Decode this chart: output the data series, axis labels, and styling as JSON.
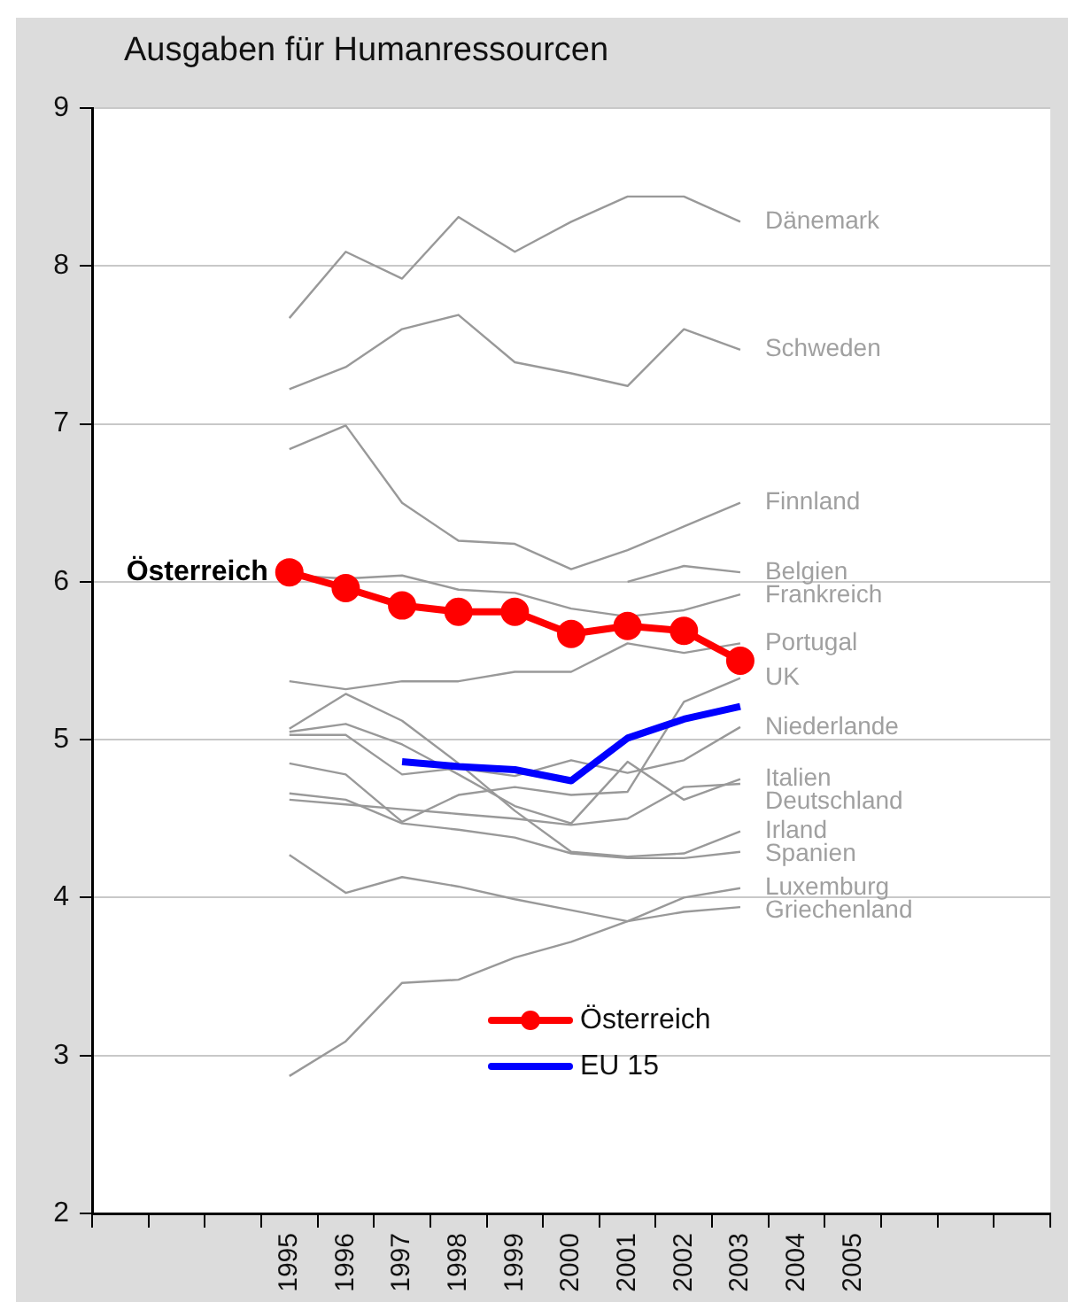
{
  "chart_data": {
    "type": "line",
    "title": "Ausgaben für Humanressourcen",
    "categories": [
      null,
      null,
      null,
      "1995",
      "1996",
      "1997",
      "1998",
      "1999",
      "2000",
      "2001",
      "2002",
      "2003",
      "2004",
      "2005",
      null,
      null,
      null
    ],
    "ylim": [
      2,
      9
    ],
    "yticks": [
      2,
      3,
      4,
      5,
      6,
      7,
      8,
      9
    ],
    "grid": "y",
    "legend": "bottom",
    "marker": "none",
    "annotations": [
      {
        "text": "Österreich",
        "x": "1995",
        "y": 6.06
      }
    ],
    "series": [
      {
        "name": "Österreich",
        "color": "#ff0000",
        "marker": "circle",
        "values": [
          null,
          null,
          null,
          6.06,
          5.96,
          5.85,
          5.81,
          5.81,
          5.67,
          5.72,
          5.69,
          5.5,
          null,
          null,
          null,
          null,
          null
        ]
      },
      {
        "name": "EU 15",
        "color": "#0000ff",
        "values": [
          null,
          null,
          null,
          null,
          null,
          4.86,
          4.83,
          4.81,
          4.74,
          5.01,
          5.13,
          5.21,
          null,
          null,
          null,
          null,
          null
        ]
      },
      {
        "name": "Dänemark",
        "color": "#999999",
        "values": [
          null,
          null,
          null,
          7.67,
          8.09,
          7.92,
          8.31,
          8.09,
          8.28,
          8.44,
          8.44,
          8.28,
          null,
          null,
          null,
          null,
          null
        ]
      },
      {
        "name": "Schweden",
        "color": "#999999",
        "values": [
          null,
          null,
          null,
          7.22,
          7.36,
          7.6,
          7.69,
          7.39,
          7.32,
          7.24,
          7.6,
          7.47,
          null,
          null,
          null,
          null,
          null
        ]
      },
      {
        "name": "Finnland",
        "color": "#999999",
        "values": [
          null,
          null,
          null,
          6.84,
          6.99,
          6.5,
          6.26,
          6.24,
          6.08,
          6.2,
          6.35,
          6.5,
          null,
          null,
          null,
          null,
          null
        ]
      },
      {
        "name": "Belgien",
        "color": "#999999",
        "values": [
          null,
          null,
          null,
          null,
          null,
          null,
          null,
          null,
          null,
          6.0,
          6.1,
          6.06,
          null,
          null,
          null,
          null,
          null
        ]
      },
      {
        "name": "Frankreich",
        "color": "#999999",
        "values": [
          null,
          null,
          null,
          6.04,
          6.02,
          6.04,
          5.95,
          5.93,
          5.83,
          5.78,
          5.82,
          5.92,
          null,
          null,
          null,
          null,
          null
        ]
      },
      {
        "name": "Portugal",
        "color": "#999999",
        "values": [
          null,
          null,
          null,
          5.37,
          5.32,
          5.37,
          5.37,
          5.43,
          5.43,
          5.61,
          5.55,
          5.61,
          null,
          null,
          null,
          null,
          null
        ]
      },
      {
        "name": "UK",
        "color": "#999999",
        "values": [
          null,
          null,
          null,
          4.85,
          4.78,
          4.48,
          4.65,
          4.7,
          4.65,
          4.67,
          5.24,
          5.39,
          null,
          null,
          null,
          null,
          null
        ]
      },
      {
        "name": "Niederlande",
        "color": "#999999",
        "values": [
          null,
          null,
          null,
          5.03,
          5.03,
          4.78,
          4.82,
          4.77,
          4.87,
          4.79,
          4.87,
          5.08,
          null,
          null,
          null,
          null,
          null
        ]
      },
      {
        "name": "Italien",
        "color": "#999999",
        "values": [
          null,
          null,
          null,
          5.05,
          5.1,
          4.97,
          4.78,
          4.58,
          4.47,
          4.86,
          4.62,
          4.75,
          null,
          null,
          null,
          null,
          null
        ]
      },
      {
        "name": "Deutschland",
        "color": "#999999",
        "values": [
          null,
          null,
          null,
          4.62,
          4.59,
          4.56,
          4.53,
          4.5,
          4.46,
          4.5,
          4.7,
          4.72,
          null,
          null,
          null,
          null,
          null
        ]
      },
      {
        "name": "Irland",
        "color": "#999999",
        "values": [
          null,
          null,
          null,
          5.07,
          5.29,
          5.12,
          4.85,
          4.55,
          4.29,
          4.26,
          4.28,
          4.42,
          null,
          null,
          null,
          null,
          null
        ]
      },
      {
        "name": "Spanien",
        "color": "#999999",
        "values": [
          null,
          null,
          null,
          4.66,
          4.62,
          4.47,
          4.43,
          4.38,
          4.28,
          4.25,
          4.25,
          4.29,
          null,
          null,
          null,
          null,
          null
        ]
      },
      {
        "name": "Luxemburg",
        "color": "#999999",
        "values": [
          null,
          null,
          null,
          2.87,
          3.09,
          3.46,
          3.48,
          3.62,
          3.72,
          3.85,
          4.0,
          4.06,
          null,
          null,
          null,
          null,
          null
        ]
      },
      {
        "name": "Griechenland",
        "color": "#999999",
        "values": [
          null,
          null,
          null,
          4.27,
          4.03,
          4.13,
          4.07,
          3.99,
          3.92,
          3.85,
          3.91,
          3.94,
          null,
          null,
          null,
          null,
          null
        ]
      }
    ]
  }
}
